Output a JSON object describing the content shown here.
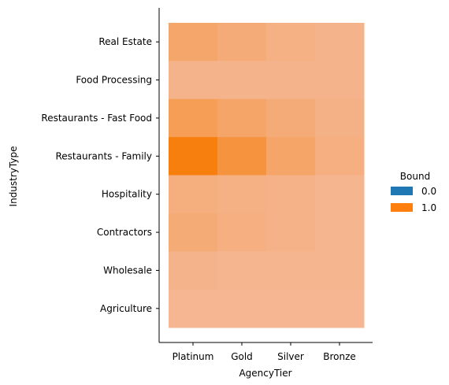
{
  "chart_data": {
    "type": "heatmap",
    "title": "",
    "xlabel": "AgencyTier",
    "ylabel": "IndustryType",
    "x_categories": [
      "Platinum",
      "Gold",
      "Silver",
      "Bronze"
    ],
    "y_categories": [
      "Real Estate",
      "Food Processing",
      "Restaurants - Fast Food",
      "Restaurants - Family",
      "Hospitality",
      "Contractors",
      "Wholesale",
      "Agriculture"
    ],
    "values": [
      [
        0.42,
        0.34,
        0.26,
        0.22
      ],
      [
        0.22,
        0.22,
        0.22,
        0.22
      ],
      [
        0.55,
        0.44,
        0.34,
        0.25
      ],
      [
        1.0,
        0.7,
        0.44,
        0.28
      ],
      [
        0.3,
        0.27,
        0.24,
        0.2
      ],
      [
        0.35,
        0.29,
        0.24,
        0.2
      ],
      [
        0.22,
        0.2,
        0.2,
        0.2
      ],
      [
        0.18,
        0.18,
        0.18,
        0.18
      ]
    ],
    "legend": {
      "title": "Bound",
      "placement": "right",
      "entries": [
        {
          "label": "0.0",
          "color": "#1f77b4"
        },
        {
          "label": "1.0",
          "color": "#ff7f0e"
        }
      ]
    },
    "colors": {
      "high": "#f77f0e",
      "low": "#f4c2ae"
    },
    "grid": false
  }
}
